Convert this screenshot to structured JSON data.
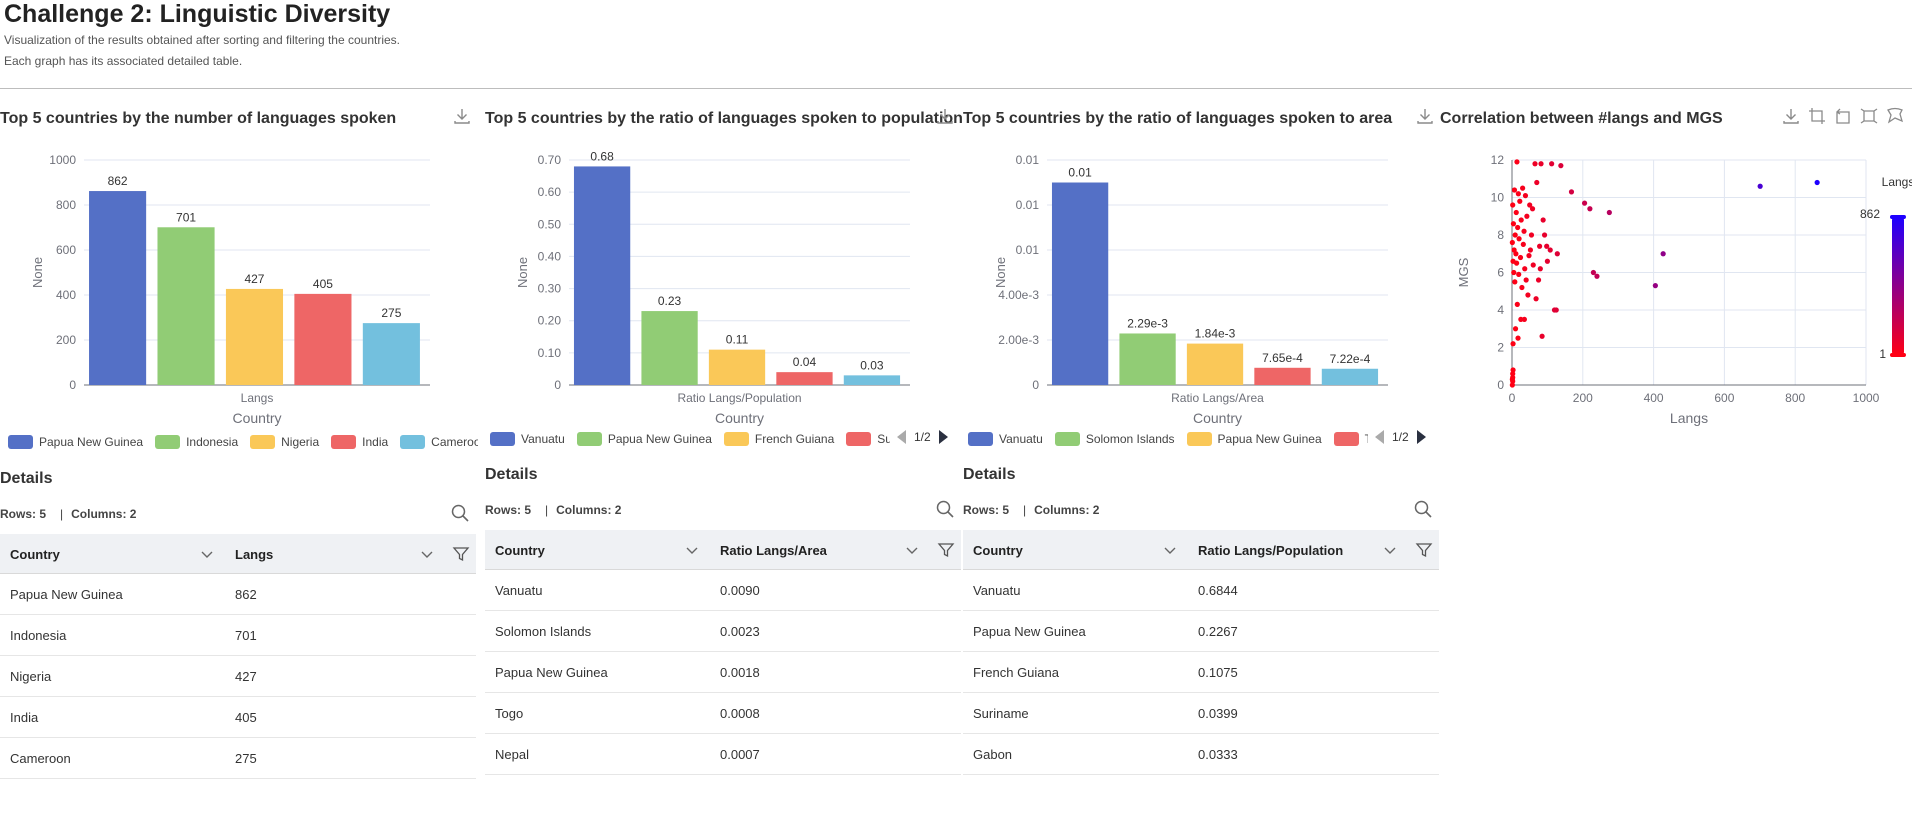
{
  "page": {
    "title": "Challenge 2: Linguistic Diversity",
    "subtitle_1": "Visualization of the results obtained after sorting and filtering the countries.",
    "subtitle_2": "Each graph has its associated detailed table."
  },
  "colors": {
    "blue": "#5470c6",
    "green": "#91cc75",
    "yellow": "#fac858",
    "red": "#ee6666",
    "cyan": "#73c0de"
  },
  "icons": {
    "download": "download-icon",
    "search": "search-icon",
    "filter": "filter-icon",
    "chevron": "chevron-down-icon"
  },
  "panels": [
    {
      "title": "Top 5 countries  by the number of  languages spoken",
      "chart_data": {
        "type": "bar",
        "categories": [
          "Langs"
        ],
        "series": [
          {
            "name": "Papua New Guinea",
            "values": [
              862
            ]
          },
          {
            "name": "Indonesia",
            "values": [
              701
            ]
          },
          {
            "name": "Nigeria",
            "values": [
              427
            ]
          },
          {
            "name": "India",
            "values": [
              405
            ]
          },
          {
            "name": "Cameroon",
            "values": [
              275
            ]
          }
        ],
        "data_labels": [
          "862",
          "701",
          "427",
          "405",
          "275"
        ],
        "yticks": [
          "0",
          "200",
          "400",
          "600",
          "800",
          "1000"
        ],
        "ylim": [
          0,
          1000
        ],
        "xlabel": "Country",
        "ylabel": "None"
      },
      "legend": [
        "Papua New Guinea",
        "Indonesia",
        "Nigeria",
        "India",
        "Cameroon"
      ],
      "pager": "",
      "details": {
        "title": "Details",
        "rows_label": "Rows: 5",
        "cols_label": "Columns: 2",
        "headers": [
          "Country",
          "Langs"
        ],
        "rows": [
          [
            "Papua New Guinea",
            "862"
          ],
          [
            "Indonesia",
            "701"
          ],
          [
            "Nigeria",
            "427"
          ],
          [
            "India",
            "405"
          ],
          [
            "Cameroon",
            "275"
          ]
        ]
      }
    },
    {
      "title": "Top 5 countries by  the ratio of languages  spoken to population",
      "chart_data": {
        "type": "bar",
        "categories": [
          "Ratio Langs/Population"
        ],
        "series": [
          {
            "name": "Vanuatu",
            "values": [
              0.68
            ]
          },
          {
            "name": "Papua New Guinea",
            "values": [
              0.23
            ]
          },
          {
            "name": "French Guiana",
            "values": [
              0.11
            ]
          },
          {
            "name": "Suriname",
            "values": [
              0.04
            ]
          },
          {
            "name": "Gabon",
            "values": [
              0.03
            ]
          }
        ],
        "data_labels": [
          "0.68",
          "0.23",
          "0.11",
          "0.04",
          "0.03"
        ],
        "yticks": [
          "0",
          "0.10",
          "0.20",
          "0.30",
          "0.40",
          "0.50",
          "0.60",
          "0.70"
        ],
        "ylim": [
          0,
          0.7
        ],
        "xlabel": "Country",
        "ylabel": "None"
      },
      "legend": [
        "Vanuatu",
        "Papua New Guinea",
        "French Guiana",
        "Suri"
      ],
      "pager": "1/2",
      "details": {
        "title": "Details",
        "rows_label": "Rows: 5",
        "cols_label": "Columns: 2",
        "headers": [
          "Country",
          "Ratio Langs/Area"
        ],
        "rows": [
          [
            "Vanuatu",
            "0.0090"
          ],
          [
            "Solomon Islands",
            "0.0023"
          ],
          [
            "Papua New Guinea",
            "0.0018"
          ],
          [
            "Togo",
            "0.0008"
          ],
          [
            "Nepal",
            "0.0007"
          ]
        ]
      }
    },
    {
      "title": "Top 5 countries by  the ratio of languages  spoken to area",
      "chart_data": {
        "type": "bar",
        "categories": [
          "Ratio Langs/Area"
        ],
        "series": [
          {
            "name": "Vanuatu",
            "values": [
              0.009
            ]
          },
          {
            "name": "Solomon Islands",
            "values": [
              0.00229
            ]
          },
          {
            "name": "Papua New Guinea",
            "values": [
              0.00184
            ]
          },
          {
            "name": "Togo",
            "values": [
              0.000765
            ]
          },
          {
            "name": "Nepal",
            "values": [
              0.000722
            ]
          }
        ],
        "data_labels": [
          "0.01",
          "2.29e-3",
          "1.84e-3",
          "7.65e-4",
          "7.22e-4"
        ],
        "yticks": [
          "0",
          "2.00e-3",
          "4.00e-3",
          "0.01",
          "0.01",
          "0.01"
        ],
        "ylim": [
          0,
          0.01
        ],
        "xlabel": "Country",
        "ylabel": "None"
      },
      "legend": [
        "Vanuatu",
        "Solomon Islands",
        "Papua New Guinea",
        "T"
      ],
      "pager": "1/2",
      "details": {
        "title": "Details",
        "rows_label": "Rows: 5",
        "cols_label": "Columns: 2",
        "headers": [
          "Country",
          "Ratio Langs/Population"
        ],
        "rows": [
          [
            "Vanuatu",
            "0.6844"
          ],
          [
            "Papua New Guinea",
            "0.2267"
          ],
          [
            "French Guiana",
            "0.1075"
          ],
          [
            "Suriname",
            "0.0399"
          ],
          [
            "Gabon",
            "0.0333"
          ]
        ]
      }
    }
  ],
  "scatter": {
    "title": "Correlation between #langs and MGS",
    "chart_data": {
      "type": "scatter",
      "xlabel": "Langs",
      "ylabel": "MGS",
      "xlim": [
        0,
        1000
      ],
      "ylim": [
        0,
        12
      ],
      "xticks": [
        "0",
        "200",
        "400",
        "600",
        "800",
        "1000"
      ],
      "yticks": [
        "0",
        "2",
        "4",
        "6",
        "8",
        "10",
        "12"
      ],
      "visualmap_label": "Langs",
      "visualmap_max": "862",
      "visualmap_min": "1",
      "points": [
        [
          862,
          10.8
        ],
        [
          701,
          10.6
        ],
        [
          427,
          7.0
        ],
        [
          405,
          5.3
        ],
        [
          275,
          9.2
        ],
        [
          240,
          5.8
        ],
        [
          230,
          6.0
        ],
        [
          220,
          9.4
        ],
        [
          205,
          9.7
        ],
        [
          168,
          10.3
        ],
        [
          138,
          11.7
        ],
        [
          128,
          7.0
        ],
        [
          125,
          4.0
        ],
        [
          120,
          4.0
        ],
        [
          112,
          11.8
        ],
        [
          108,
          7.2
        ],
        [
          100,
          6.6
        ],
        [
          98,
          7.4
        ],
        [
          92,
          8.0
        ],
        [
          88,
          8.8
        ],
        [
          85,
          2.6
        ],
        [
          82,
          11.8
        ],
        [
          80,
          6.2
        ],
        [
          78,
          7.4
        ],
        [
          75,
          5.6
        ],
        [
          70,
          10.8
        ],
        [
          68,
          4.6
        ],
        [
          65,
          11.8
        ],
        [
          60,
          6.4
        ],
        [
          58,
          9.4
        ],
        [
          55,
          8.0
        ],
        [
          52,
          7.2
        ],
        [
          50,
          9.6
        ],
        [
          48,
          6.9
        ],
        [
          45,
          4.8
        ],
        [
          42,
          9.0
        ],
        [
          40,
          5.6
        ],
        [
          38,
          10.1
        ],
        [
          36,
          6.2
        ],
        [
          35,
          3.5
        ],
        [
          34,
          8.2
        ],
        [
          32,
          7.5
        ],
        [
          30,
          10.5
        ],
        [
          28,
          5.2
        ],
        [
          26,
          8.8
        ],
        [
          25,
          3.5
        ],
        [
          24,
          6.8
        ],
        [
          22,
          9.8
        ],
        [
          20,
          7.8
        ],
        [
          19,
          5.9
        ],
        [
          18,
          10.2
        ],
        [
          17,
          2.5
        ],
        [
          16,
          8.4
        ],
        [
          15,
          4.3
        ],
        [
          14,
          11.9
        ],
        [
          13,
          6.5
        ],
        [
          12,
          9.2
        ],
        [
          11,
          7.0
        ],
        [
          10,
          3.0
        ],
        [
          9,
          8.0
        ],
        [
          8,
          5.5
        ],
        [
          7,
          10.4
        ],
        [
          6,
          7.2
        ],
        [
          5,
          6.0
        ],
        [
          4,
          8.6
        ],
        [
          3,
          2.2
        ],
        [
          3,
          0.8
        ],
        [
          2,
          0.6
        ],
        [
          2,
          0.4
        ],
        [
          2,
          0.2
        ],
        [
          1,
          0.0
        ],
        [
          1,
          0.3
        ],
        [
          1,
          7.6
        ],
        [
          2,
          9.6
        ],
        [
          3,
          6.6
        ]
      ]
    }
  }
}
